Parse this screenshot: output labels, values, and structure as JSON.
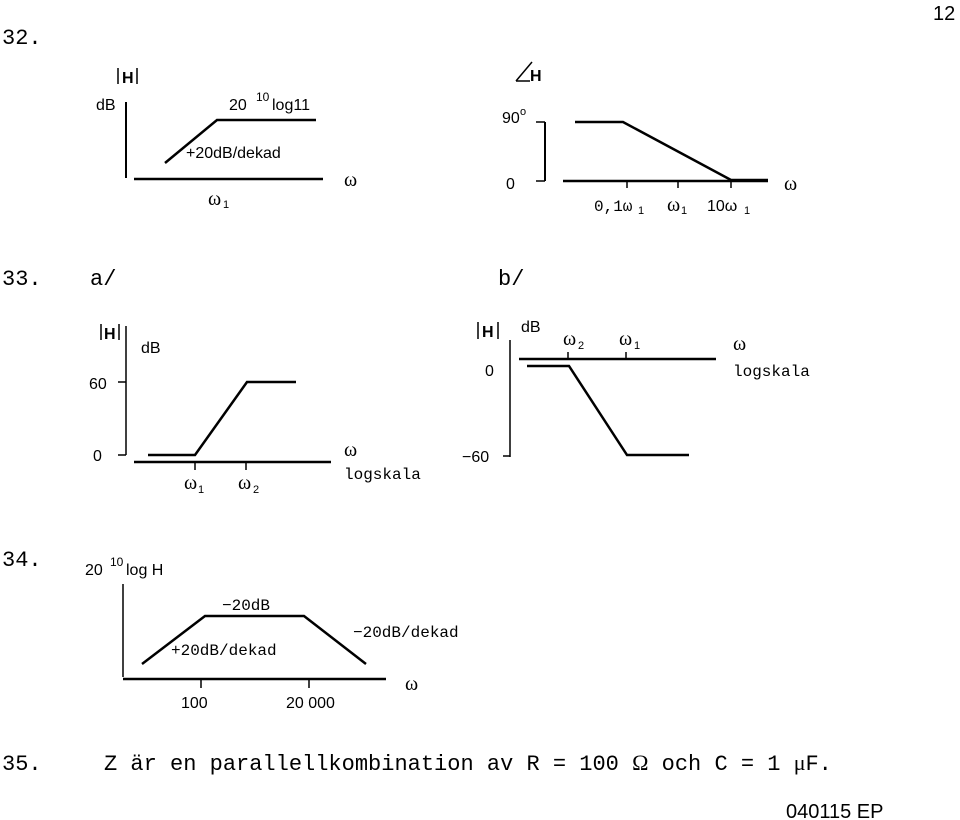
{
  "page_number": "12",
  "footer_code": "040115 EP",
  "problem32": {
    "number": "32.",
    "magnitude": {
      "H_label": "H",
      "db_label": "dB",
      "level_prefix": "20",
      "level_sup": "10",
      "level_suffix": "log11",
      "slope_label": "+20dB/dekad",
      "omega_axis": "ω",
      "omega1": "ω",
      "omega1_sub": "1"
    },
    "phase": {
      "H_label": "H",
      "deg90": "90",
      "deg_sup": "o",
      "deg0": "0",
      "omega_axis": "ω",
      "tick1": "0,1ω",
      "tick1_sub": "1",
      "tick2": "ω",
      "tick2_sub": "1",
      "tick3": "10ω",
      "tick3_sub": "1"
    }
  },
  "problem33": {
    "number": "33.",
    "part_a": {
      "label": "a/",
      "H_label": "H",
      "db_label": "dB",
      "y60": "60",
      "y0": "0",
      "omega_axis": "ω",
      "logscale": "logskala",
      "omega1": "ω",
      "omega1_sub": "1",
      "omega2": "ω",
      "omega2_sub": "2"
    },
    "part_b": {
      "label": "b/",
      "H_label": "H",
      "db_label": "dB",
      "y0": "0",
      "yneg60": "−60",
      "omega2": "ω",
      "omega2_sub": "2",
      "omega1": "ω",
      "omega1_sub": "1",
      "omega_axis": "ω",
      "logscale": "logskala"
    }
  },
  "problem34": {
    "number": "34.",
    "ylabel_prefix": "20",
    "ylabel_sup": "10",
    "ylabel_suffix": "log H",
    "top_label": "−20dB",
    "rise_label": "+20dB/dekad",
    "fall_label": "−20dB/dekad",
    "tick1": "100",
    "tick2": "20 000",
    "omega_axis": "ω"
  },
  "problem35": {
    "number": "35.",
    "text_before_omega": "Z är en parallellkombination av R = 100 ",
    "omega_symbol": "Ω",
    "text_middle": " och C = 1 ",
    "mu_symbol": "μ",
    "text_end": "F."
  }
}
